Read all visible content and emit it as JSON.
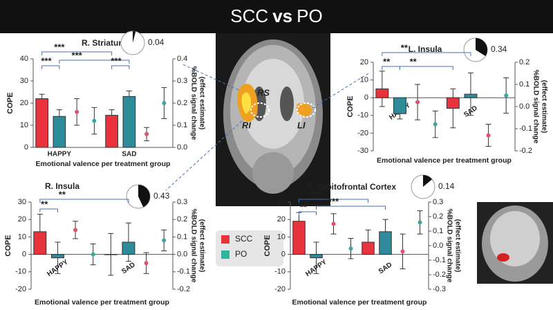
{
  "title": [
    "SCC",
    "vs",
    "PO"
  ],
  "legend": [
    {
      "name": "SCC",
      "color": "#e8333c"
    },
    {
      "name": "PO",
      "color": "#2fb59a"
    }
  ],
  "brain_labels": [
    "RS",
    "RI",
    "LI"
  ],
  "chart_data": [
    {
      "type": "bar",
      "title": "R. Striatum",
      "pie_value": 0.04,
      "categories": [
        "HAPPY",
        "SAD"
      ],
      "series": [
        {
          "color": "#e8333c",
          "values": [
            22,
            14.5
          ],
          "errors": [
            2,
            2.5
          ]
        },
        {
          "color": "#2e8b9a",
          "values": [
            14,
            23
          ],
          "errors": [
            3,
            2.5
          ]
        },
        {
          "color": "#e05070",
          "values": [
            0.16,
            0.06
          ],
          "errors": [
            0.06,
            0.03
          ],
          "axis": "y2"
        },
        {
          "color": "#3aa7a0",
          "values": [
            0.12,
            0.2
          ],
          "errors": [
            0.06,
            0.07
          ],
          "axis": "y2"
        }
      ],
      "ylim": [
        0,
        40
      ],
      "yticks": [
        0,
        10,
        20,
        30,
        40
      ],
      "y2lim": [
        0,
        0.4
      ],
      "y2ticks": [
        {
          "value": 0,
          "label": "0.0"
        },
        0.1,
        0.2,
        0.3,
        0.4
      ],
      "ylabel": "COPE",
      "y2label": [
        "%BOLD signal change",
        "(effect estimate)"
      ],
      "xlabel": "Emotional valence per treatment group",
      "annotations": [
        "***",
        "***",
        "***",
        "***"
      ]
    },
    {
      "type": "bar",
      "title": "L. Insula",
      "pie_value": 0.34,
      "categories": [
        "HAPPY",
        "SAD"
      ],
      "series": [
        {
          "color": "#e8333c",
          "values": [
            5,
            -6
          ],
          "errors": [
            10,
            11
          ]
        },
        {
          "color": "#2e8b9a",
          "values": [
            -9,
            2
          ],
          "errors": [
            3,
            12
          ]
        },
        {
          "color": "#e05070",
          "values": [
            0.02,
            -0.13
          ],
          "errors": [
            0.08,
            0.05
          ],
          "axis": "y2"
        },
        {
          "color": "#3aa7a0",
          "values": [
            -0.08,
            0.05
          ],
          "errors": [
            0.06,
            0.08
          ],
          "axis": "y2"
        }
      ],
      "ylim": [
        -30,
        20
      ],
      "yticks": [
        -30,
        -20,
        -10,
        0,
        10,
        20
      ],
      "y2lim": [
        -0.2,
        0.2
      ],
      "y2ticks": [
        -0.2,
        -0.1,
        {
          "value": 0,
          "label": "0.0"
        },
        0.1,
        0.2
      ],
      "ylabel": "COPE",
      "y2label": [
        "%BOLD signal change",
        "(effect estimate)"
      ],
      "xlabel": "Emotional valence per treatment group",
      "annotations": [
        "**",
        "**",
        "**"
      ]
    },
    {
      "type": "bar",
      "title": "R. Insula",
      "pie_value": 0.43,
      "categories": [
        "HAPPY",
        "SAD"
      ],
      "series": [
        {
          "color": "#e8333c",
          "values": [
            13,
            0
          ],
          "errors": [
            10,
            12
          ]
        },
        {
          "color": "#2e8b9a",
          "values": [
            -2,
            7
          ],
          "errors": [
            9,
            11
          ]
        },
        {
          "color": "#e05070",
          "values": [
            0.14,
            -0.05
          ],
          "errors": [
            0.05,
            0.06
          ],
          "axis": "y2"
        },
        {
          "color": "#3aa7a0",
          "values": [
            0,
            0.08
          ],
          "errors": [
            0.06,
            0.06
          ],
          "axis": "y2"
        }
      ],
      "ylim": [
        -20,
        30
      ],
      "yticks": [
        -20,
        -10,
        0,
        10,
        20,
        30
      ],
      "y2lim": [
        -0.2,
        0.3
      ],
      "y2ticks": [
        -0.2,
        -0.1,
        {
          "value": 0,
          "label": "0.0"
        },
        0.1,
        0.2,
        0.3
      ],
      "ylabel": "COPE",
      "y2label": [
        "%BOLD signal change",
        "(effect estimate)"
      ],
      "xlabel": "Emotional valence per treatment group",
      "annotations": [
        "**",
        "**"
      ]
    },
    {
      "type": "bar",
      "title": "R. Orbitofrontal Cortex",
      "pie_value": 0.14,
      "categories": [
        "HAPPY",
        "SAD"
      ],
      "series": [
        {
          "color": "#e8333c",
          "values": [
            19,
            7
          ],
          "errors": [
            5,
            7
          ]
        },
        {
          "color": "#2e8b9a",
          "values": [
            -2,
            13
          ],
          "errors": [
            9,
            7
          ]
        },
        {
          "color": "#e05070",
          "values": [
            0.15,
            -0.04
          ],
          "errors": [
            0.07,
            0.12
          ],
          "axis": "y2"
        },
        {
          "color": "#3aa7a0",
          "values": [
            -0.02,
            0.16
          ],
          "errors": [
            0.07,
            0.08
          ],
          "axis": "y2"
        }
      ],
      "ylim": [
        -20,
        30
      ],
      "yticks": [
        -20,
        -10,
        0,
        10,
        20,
        30
      ],
      "y2lim": [
        -0.3,
        0.3
      ],
      "y2ticks": [
        -0.3,
        -0.2,
        -0.1,
        {
          "value": 0,
          "label": "0.0"
        },
        0.1,
        0.2,
        0.3
      ],
      "ylabel": "COPE",
      "y2label": [
        "%BOLD signal change",
        "(effect estimate)"
      ],
      "xlabel": "Emotional valence per treatment group",
      "annotations": [
        "***",
        "**",
        "***"
      ]
    }
  ]
}
